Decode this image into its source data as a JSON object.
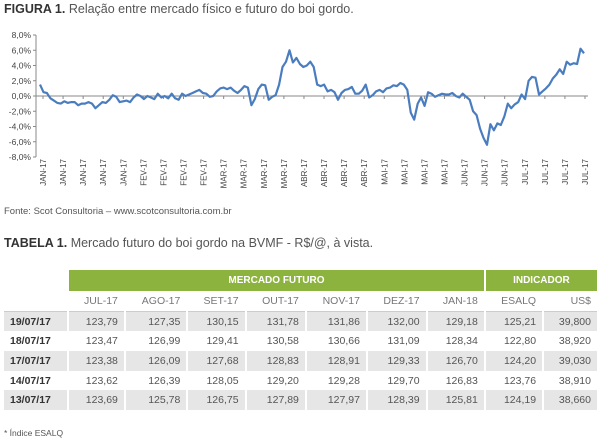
{
  "figure": {
    "label": "FIGURA 1.",
    "title": "Relação entre mercado físico e futuro do boi gordo."
  },
  "chart_data": {
    "type": "line",
    "title": "",
    "xlabel": "",
    "ylabel": "",
    "ylim": [
      -8,
      8
    ],
    "yticks": [
      "8,0%",
      "6,0%",
      "4,0%",
      "2,0%",
      "0,0%",
      "-2,0%",
      "-4,0%",
      "-6,0%",
      "-8,0%"
    ],
    "xticks": [
      "JAN-17",
      "JAN-17",
      "JAN-17",
      "JAN-17",
      "JAN-17",
      "FEV-17",
      "FEV-17",
      "FEV-17",
      "FEV-17",
      "MAR-17",
      "MAR-17",
      "MAR-17",
      "MAR-17",
      "ABR-17",
      "ABR-17",
      "ABR-17",
      "ABR-17",
      "MAI-17",
      "MAI-17",
      "MAI-17",
      "MAI-17",
      "JUN-17",
      "JUN-17",
      "JUN-17",
      "JUL-17",
      "JUL-17",
      "JUL-17",
      "JUL-17"
    ],
    "line_color": "#4a7dbf",
    "grid": false,
    "series": [
      {
        "values": [
          1.5,
          0.5,
          0.4,
          -0.3,
          -0.6,
          -0.9,
          -1.0,
          -0.7,
          -0.9,
          -0.8,
          -0.8,
          -1.2,
          -1.0,
          -1.0,
          -0.8,
          -1.0,
          -1.6,
          -1.2,
          -0.8,
          -0.9,
          -0.5,
          0.1,
          -0.1,
          -0.8,
          -0.7,
          -0.6,
          -0.8,
          -0.2,
          0.2,
          0.0,
          -0.4,
          0.0,
          -0.2,
          -0.4,
          0.3,
          -0.2,
          0.0,
          -0.3,
          0.3,
          -0.3,
          -0.5,
          0.3,
          0.0,
          0.2,
          0.4,
          0.6,
          0.8,
          0.4,
          0.3,
          -0.1,
          0.0,
          0.6,
          1.0,
          1.1,
          0.9,
          1.1,
          0.7,
          0.4,
          0.8,
          1.3,
          1.1,
          -1.2,
          -0.4,
          0.9,
          1.5,
          1.4,
          -0.5,
          -0.1,
          0.1,
          1.5,
          3.8,
          4.5,
          6.0,
          4.4,
          5.0,
          4.2,
          3.8,
          4.0,
          4.5,
          3.8,
          1.5,
          1.3,
          1.5,
          0.6,
          0.8,
          0.5,
          -0.5,
          0.4,
          0.8,
          0.9,
          1.2,
          0.3,
          0.3,
          0.7,
          1.5,
          -0.2,
          0.1,
          0.6,
          0.8,
          0.5,
          1.0,
          1.1,
          1.4,
          1.3,
          1.7,
          1.5,
          0.8,
          -2.2,
          -3.1,
          -1.0,
          -0.2,
          -1.3,
          0.5,
          0.3,
          -0.1,
          0.1,
          0.3,
          0.2,
          0.2,
          0.4,
          0.0,
          -0.2,
          0.3,
          -0.1,
          -0.5,
          -2.0,
          -2.5,
          -4.3,
          -5.5,
          -6.4,
          -3.7,
          -4.5,
          -3.6,
          -3.8,
          -2.7,
          -1.0,
          -1.6,
          -1.1,
          -0.8,
          0.2,
          -0.4,
          2.0,
          2.5,
          2.4,
          0.2,
          0.6,
          1.0,
          1.5,
          2.3,
          2.8,
          3.5,
          2.9,
          4.5,
          4.1,
          4.3,
          4.2,
          6.2,
          5.6
        ]
      }
    ]
  },
  "source": "Fonte:  Scot Consultoria – www.scotconsultoria.com.br",
  "table": {
    "label": "TABELA 1.",
    "title": "Mercado futuro do boi gordo na BVMF - R$/@, à vista.",
    "group_future": "MERCADO FUTURO",
    "group_indicator": "INDICADOR",
    "columns": [
      "JUL-17",
      "AGO-17",
      "SET-17",
      "OUT-17",
      "NOV-17",
      "DEZ-17",
      "JAN-18",
      "ESALQ",
      "US$"
    ],
    "rows": [
      {
        "date": "19/07/17",
        "values": [
          "123,79",
          "127,35",
          "130,15",
          "131,78",
          "131,86",
          "132,00",
          "129,18",
          "125,21",
          "39,800"
        ]
      },
      {
        "date": "18/07/17",
        "values": [
          "123,47",
          "126,99",
          "129,41",
          "130,58",
          "130,66",
          "131,09",
          "128,34",
          "122,80",
          "38,920"
        ]
      },
      {
        "date": "17/07/17",
        "values": [
          "123,38",
          "126,09",
          "127,68",
          "128,83",
          "128,91",
          "129,33",
          "126,70",
          "124,20",
          "39,030"
        ]
      },
      {
        "date": "14/07/17",
        "values": [
          "123,62",
          "126,39",
          "128,05",
          "129,20",
          "129,28",
          "129,70",
          "126,83",
          "123,76",
          "38,910"
        ]
      },
      {
        "date": "13/07/17",
        "values": [
          "123,69",
          "125,78",
          "126,75",
          "127,89",
          "127,97",
          "128,39",
          "125,81",
          "124,19",
          "38,660"
        ]
      }
    ]
  },
  "footnote": "* Índice ESALQ"
}
